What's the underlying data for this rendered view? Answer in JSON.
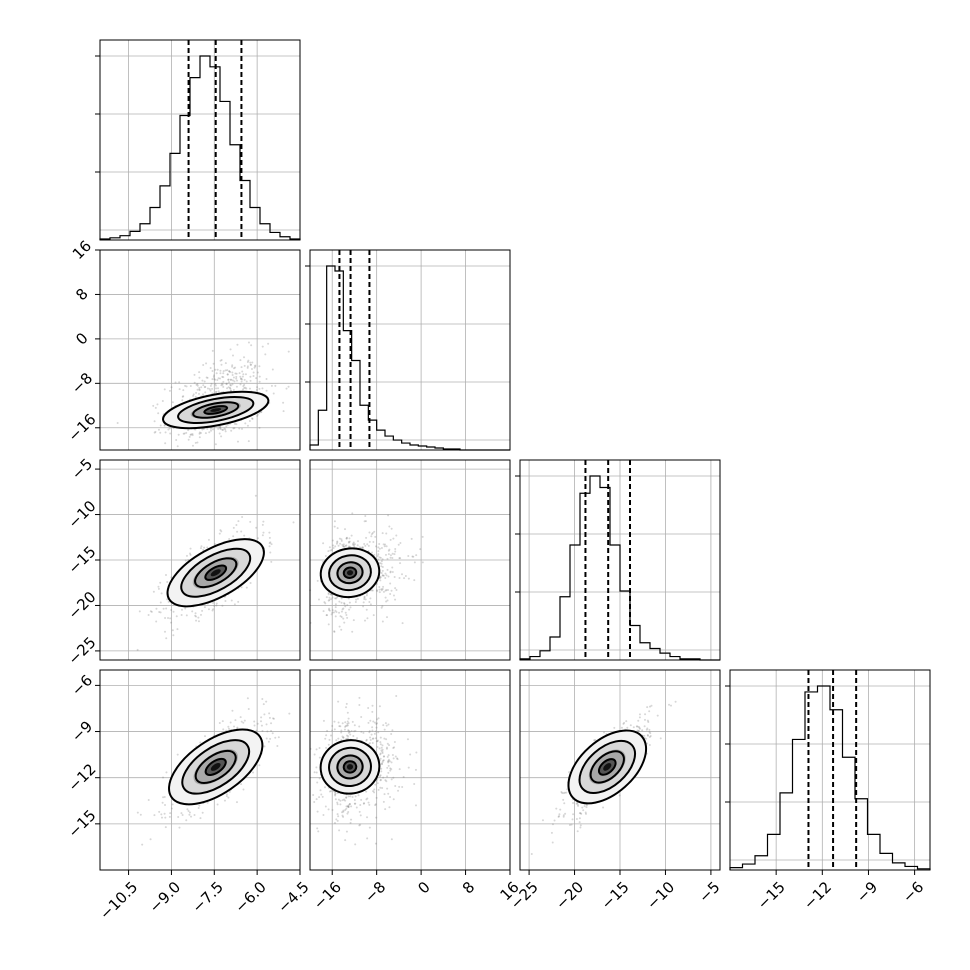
{
  "chart_data": {
    "type": "corner",
    "grid": true,
    "parameters": [
      {
        "range": [
          -11.5,
          -4.5
        ],
        "ticks": [
          -10.5,
          -9.0,
          -7.5,
          -6.0,
          -4.5
        ],
        "tick_labels": [
          "−10.5",
          "−9.0",
          "−7.5",
          "−6.0",
          "−4.5"
        ],
        "quantiles": [
          -8.4,
          -7.45,
          -6.55
        ],
        "mean": -7.45,
        "sd": 0.85
      },
      {
        "range": [
          -20,
          16
        ],
        "ticks": [
          -16,
          -8,
          0,
          8,
          16
        ],
        "tick_labels": [
          "−16",
          "−8",
          "0",
          "8",
          "16"
        ],
        "quantiles": [
          -14.7,
          -12.7,
          -9.3
        ],
        "mean": -12.8,
        "sd": 2.4
      },
      {
        "range": [
          -26,
          -4
        ],
        "ticks": [
          -25,
          -20,
          -15,
          -10,
          -5
        ],
        "tick_labels": [
          "−25",
          "−20",
          "−15",
          "−10",
          "−5"
        ],
        "quantiles": [
          -18.8,
          -16.3,
          -13.9
        ],
        "mean": -16.4,
        "sd": 2.3
      },
      {
        "range": [
          -18,
          -5
        ],
        "ticks": [
          -15,
          -12,
          -9,
          -6
        ],
        "tick_labels": [
          "−15",
          "−12",
          "−9",
          "−6"
        ],
        "quantiles": [
          -12.9,
          -11.3,
          -9.8
        ],
        "mean": -11.3,
        "sd": 1.5
      }
    ],
    "histograms": [
      {
        "param": 0,
        "bins": [
          -11.5,
          -4.5
        ],
        "counts": [
          1,
          2,
          4,
          8,
          15,
          30,
          50,
          80,
          115,
          150,
          170,
          160,
          128,
          88,
          55,
          30,
          15,
          7,
          3,
          1
        ]
      },
      {
        "param": 1,
        "bins": [
          -20,
          16
        ],
        "counts": [
          5,
          40,
          185,
          180,
          120,
          90,
          45,
          30,
          20,
          14,
          10,
          7,
          5,
          4,
          3,
          2,
          1,
          1,
          0,
          0,
          0,
          0,
          0,
          0
        ]
      },
      {
        "param": 2,
        "bins": [
          -26,
          -4
        ],
        "counts": [
          1,
          3,
          8,
          20,
          55,
          100,
          145,
          160,
          150,
          100,
          60,
          30,
          15,
          10,
          6,
          3,
          1,
          1,
          0,
          0
        ]
      },
      {
        "param": 3,
        "bins": [
          -18,
          -5
        ],
        "counts": [
          2,
          5,
          12,
          30,
          65,
          110,
          150,
          155,
          135,
          95,
          60,
          30,
          14,
          6,
          3,
          1
        ]
      }
    ],
    "pairs": [
      {
        "x": 0,
        "y": 1,
        "corr": 0.35
      },
      {
        "x": 0,
        "y": 2,
        "corr": 0.65
      },
      {
        "x": 1,
        "y": 2,
        "corr": 0.2
      },
      {
        "x": 0,
        "y": 3,
        "corr": 0.72
      },
      {
        "x": 1,
        "y": 3,
        "corr": 0.15
      },
      {
        "x": 2,
        "y": 3,
        "corr": 0.8
      }
    ]
  }
}
